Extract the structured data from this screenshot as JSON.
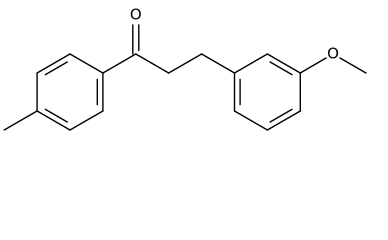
{
  "atoms": [
    {
      "label": "O"
    },
    {
      "label": "O"
    }
  ]
}
